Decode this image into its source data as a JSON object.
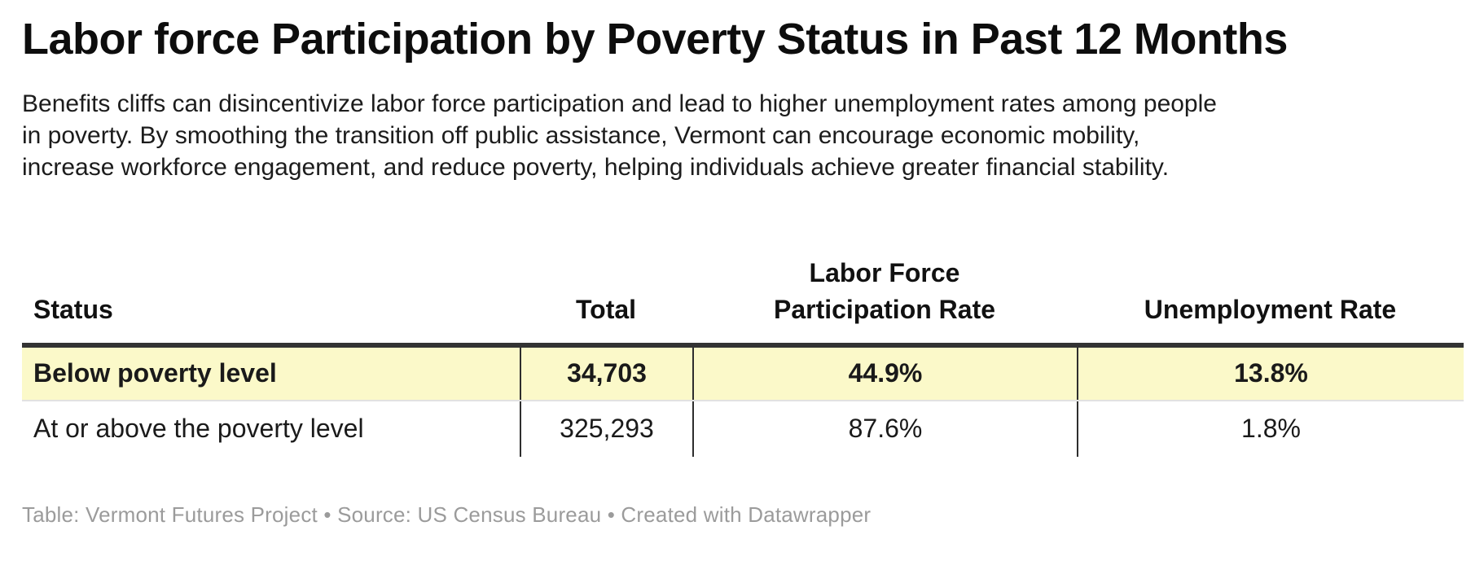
{
  "header": {
    "title": "Labor force Participation by Poverty Status in Past 12 Months",
    "description_lines": [
      "Benefits cliffs can disincentivize labor force participation and lead to higher unemployment rates among people",
      "in poverty. By smoothing the transition off public assistance, Vermont can encourage economic mobility,",
      "increase workforce engagement, and reduce poverty, helping individuals achieve greater financial stability."
    ]
  },
  "table": {
    "col_headers": {
      "status": "Status",
      "total": "Total",
      "participation_line1": "Labor Force",
      "participation_line2": "Participation Rate",
      "unemployment": "Unemployment Rate"
    },
    "rows": [
      {
        "status": "Below poverty level",
        "total": "34,703",
        "participation": "44.9%",
        "unemployment": "13.8%"
      },
      {
        "status": "At or above the poverty level",
        "total": "325,293",
        "participation": "87.6%",
        "unemployment": "1.8%"
      }
    ]
  },
  "chart_data": {
    "type": "table",
    "title": "Labor force Participation by Poverty Status in Past 12 Months",
    "columns": [
      "Status",
      "Total",
      "Labor Force Participation Rate",
      "Unemployment Rate"
    ],
    "rows": [
      [
        "Below poverty level",
        "34,703",
        "44.9%",
        "13.8%"
      ],
      [
        "At or above the poverty level",
        "325,293",
        "87.6%",
        "1.8%"
      ]
    ],
    "highlighted_row": "Below poverty level",
    "layout_hints": {
      "highlight_color": "#fbf9c9",
      "header_rule_color": "#333333",
      "row_divider_color": "#e2e2e2",
      "column_divider_color": "#2e2e2e"
    }
  },
  "footer": {
    "text": "Table: Vermont Futures Project • Source: US Census Bureau • Created with Datawrapper"
  },
  "colors": {
    "background": "#ffffff",
    "title_text": "#0d0d0d",
    "body_text": "#1a1a1a",
    "footer_text": "#9b9b9b",
    "highlight_row": "#fbf9c9",
    "header_rule": "#333333"
  }
}
